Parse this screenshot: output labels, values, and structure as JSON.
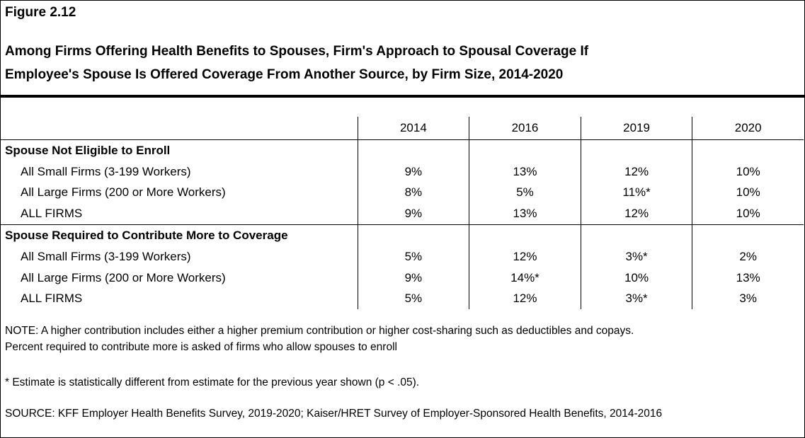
{
  "figure_label": "Figure 2.12",
  "title_line1": "Among Firms Offering Health Benefits to Spouses, Firm's Approach to Spousal Coverage If",
  "title_line2": "Employee's Spouse Is Offered Coverage From Another Source, by Firm Size, 2014-2020",
  "chart_data": {
    "type": "table",
    "columns": [
      "2014",
      "2016",
      "2019",
      "2020"
    ],
    "sections": [
      {
        "title": "Spouse Not Eligible to Enroll",
        "rows": [
          {
            "label": "All Small Firms (3-199 Workers)",
            "values": [
              "9%",
              "13%",
              "12%",
              "10%"
            ]
          },
          {
            "label": "All Large Firms (200 or More Workers)",
            "values": [
              "8%",
              "5%",
              "11%*",
              "10%"
            ]
          },
          {
            "label": "ALL FIRMS",
            "values": [
              "9%",
              "13%",
              "12%",
              "10%"
            ]
          }
        ]
      },
      {
        "title": "Spouse Required to Contribute More to Coverage",
        "rows": [
          {
            "label": "All Small Firms (3-199 Workers)",
            "values": [
              "5%",
              "12%",
              "3%*",
              "2%"
            ]
          },
          {
            "label": "All Large Firms (200 or More Workers)",
            "values": [
              "9%",
              "14%*",
              "10%",
              "13%"
            ]
          },
          {
            "label": "ALL FIRMS",
            "values": [
              "5%",
              "12%",
              "3%*",
              "3%"
            ]
          }
        ]
      }
    ]
  },
  "note_line1": "NOTE: A higher contribution includes either a higher premium contribution or higher cost-sharing such as deductibles and copays.",
  "note_line2": "Percent required to contribute more is asked of firms who allow spouses to enroll",
  "asterisk_note": "* Estimate is statistically different from estimate for the previous year shown (p < .05).",
  "source": "SOURCE: KFF Employer Health Benefits Survey, 2019-2020; Kaiser/HRET Survey of Employer-Sponsored Health Benefits, 2014-2016"
}
